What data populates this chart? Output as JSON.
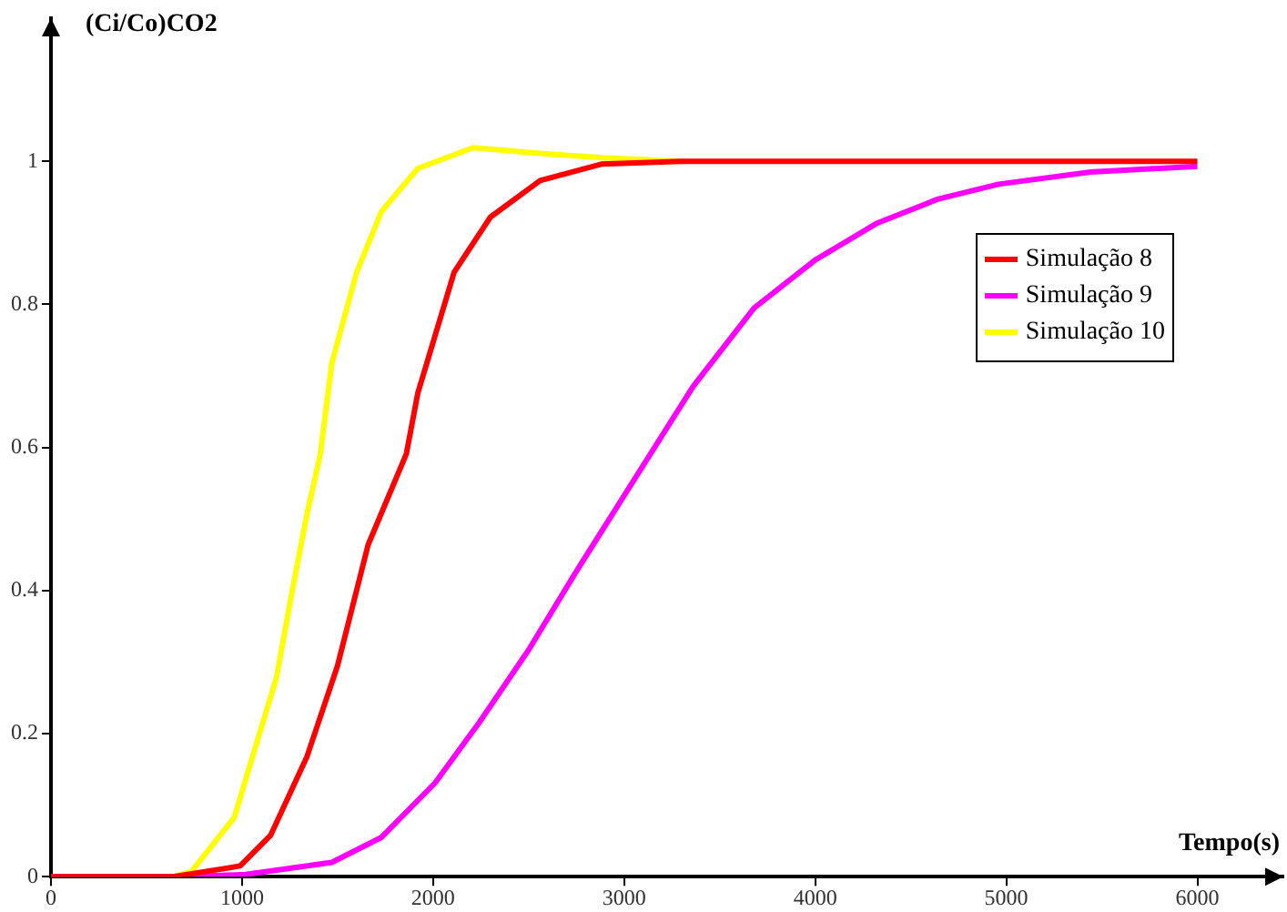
{
  "chart_data": {
    "type": "line",
    "xlabel": "Tempo(s)",
    "ylabel": "(Ci/Co)CO2",
    "xlim": [
      0,
      6450
    ],
    "ylim": [
      0,
      1.2
    ],
    "xticks": [
      0,
      1000,
      2000,
      3000,
      4000,
      5000,
      6000
    ],
    "yticks": [
      0,
      0.2,
      0.4,
      0.6,
      0.8,
      1
    ],
    "grid": false,
    "legend": "right",
    "marker": "none",
    "line_style": "solid",
    "series": [
      {
        "name": "Simulação 8",
        "color": "#ff0000",
        "x": [
          0,
          640,
          990,
          1150,
          1340,
          1500,
          1660,
          1860,
          1920,
          2110,
          2300,
          2560,
          2880,
          3300,
          4000,
          5000,
          6000
        ],
        "values": [
          0,
          0,
          0.015,
          0.058,
          0.168,
          0.295,
          0.464,
          0.591,
          0.676,
          0.845,
          0.922,
          0.973,
          0.996,
          1,
          1,
          1,
          1
        ]
      },
      {
        "name": "Simulação 9",
        "color": "#ff00ff",
        "x": [
          0,
          700,
          1020,
          1470,
          1730,
          2010,
          2240,
          2500,
          2750,
          3010,
          3360,
          3680,
          4000,
          4320,
          4640,
          4960,
          5440,
          6000
        ],
        "values": [
          0,
          0,
          0.003,
          0.02,
          0.055,
          0.131,
          0.215,
          0.317,
          0.427,
          0.537,
          0.685,
          0.795,
          0.862,
          0.913,
          0.947,
          0.968,
          0.985,
          0.993
        ]
      },
      {
        "name": "Simulação 10",
        "color": "#ffff00",
        "x": [
          0,
          640,
          735,
          960,
          1055,
          1180,
          1260,
          1340,
          1410,
          1470,
          1600,
          1730,
          1920,
          2210,
          2560,
          2880,
          3300
        ],
        "values": [
          0,
          0,
          0.007,
          0.083,
          0.168,
          0.278,
          0.396,
          0.507,
          0.591,
          0.718,
          0.845,
          0.93,
          0.99,
          1.019,
          1.011,
          1.005,
          1
        ]
      }
    ]
  }
}
